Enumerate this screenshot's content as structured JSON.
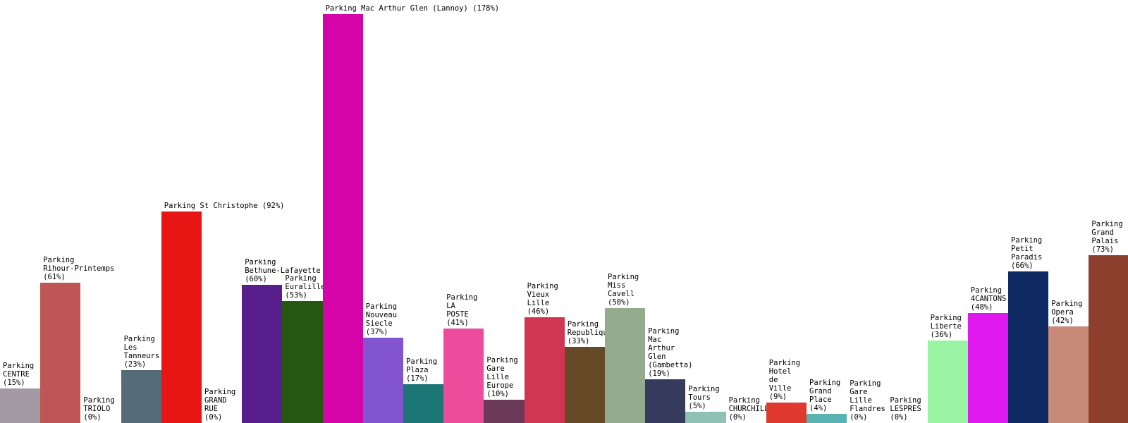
{
  "chart_data": {
    "type": "bar",
    "ylim": [
      0,
      178
    ],
    "grid": false,
    "legend": "none",
    "bars": [
      {
        "name": "Parking CENTRE",
        "label_lines": [
          "Parking",
          "CENTRE",
          "(15%)"
        ],
        "value": 15,
        "color": "#a39aa4"
      },
      {
        "name": "Parking Rihour-Printemps",
        "label_lines": [
          "Parking",
          "Rihour-Printemps",
          "(61%)"
        ],
        "value": 61,
        "color": "#bf5656"
      },
      {
        "name": "Parking TRIOLO",
        "label_lines": [
          "Parking",
          "TRIOLO",
          "(0%)"
        ],
        "value": 0,
        "color": "#cccccc"
      },
      {
        "name": "Parking Les Tanneurs",
        "label_lines": [
          "Parking",
          "Les",
          "Tanneurs",
          "(23%)"
        ],
        "value": 23,
        "color": "#566b78"
      },
      {
        "name": "Parking St Christophe",
        "label_lines": [
          "Parking St Christophe (92%)"
        ],
        "value": 92,
        "color": "#e81515"
      },
      {
        "name": "Parking GRAND RUE",
        "label_lines": [
          "Parking",
          "GRAND",
          "RUE",
          "(0%)"
        ],
        "value": 0,
        "color": "#cccccc"
      },
      {
        "name": "Parking Bethune-Lafayette",
        "label_lines": [
          "Parking",
          "Bethune-Lafayette",
          "(60%)"
        ],
        "value": 60,
        "color": "#571e8c"
      },
      {
        "name": "Parking Euralille",
        "label_lines": [
          "Parking",
          "Euralille",
          "(53%)"
        ],
        "value": 53,
        "color": "#265712"
      },
      {
        "name": "Parking Mac Arthur Glen (Lannoy)",
        "label_lines": [
          "Parking Mac Arthur Glen (Lannoy) (178%)"
        ],
        "value": 178,
        "color": "#d404a8"
      },
      {
        "name": "Parking Nouveau Siecle",
        "label_lines": [
          "Parking",
          "Nouveau",
          "Siecle",
          "(37%)"
        ],
        "value": 37,
        "color": "#8354cf"
      },
      {
        "name": "Parking Plaza",
        "label_lines": [
          "Parking",
          "Plaza",
          "(17%)"
        ],
        "value": 17,
        "color": "#1c7676"
      },
      {
        "name": "Parking LA POSTE",
        "label_lines": [
          "Parking",
          "LA",
          "POSTE",
          "(41%)"
        ],
        "value": 41,
        "color": "#ec4c9b"
      },
      {
        "name": "Parking Gare Lille Europe",
        "label_lines": [
          "Parking",
          "Gare",
          "Lille",
          "Europe",
          "(10%)"
        ],
        "value": 10,
        "color": "#6b3a59"
      },
      {
        "name": "Parking Vieux Lille",
        "label_lines": [
          "Parking",
          "Vieux",
          "Lille",
          "(46%)"
        ],
        "value": 46,
        "color": "#d13551"
      },
      {
        "name": "Parking Republique",
        "label_lines": [
          "Parking",
          "Republique",
          "(33%)"
        ],
        "value": 33,
        "color": "#664a28"
      },
      {
        "name": "Parking Miss Cavell",
        "label_lines": [
          "Parking",
          "Miss",
          "Cavell",
          "(50%)"
        ],
        "value": 50,
        "color": "#94ab8e"
      },
      {
        "name": "Parking Mac Arthur Glen (Gambetta)",
        "label_lines": [
          "Parking",
          "Mac",
          "Arthur",
          "Glen",
          "(Gambetta)",
          "(19%)"
        ],
        "value": 19,
        "color": "#363b5e"
      },
      {
        "name": "Parking Tours",
        "label_lines": [
          "Parking",
          "Tours",
          "(5%)"
        ],
        "value": 5,
        "color": "#8fc2b4"
      },
      {
        "name": "Parking CHURCHILL",
        "label_lines": [
          "Parking",
          "CHURCHILL",
          "(0%)"
        ],
        "value": 0,
        "color": "#cccccc"
      },
      {
        "name": "Parking Hotel de Ville",
        "label_lines": [
          "Parking",
          "Hotel",
          "de",
          "Ville",
          "(9%)"
        ],
        "value": 9,
        "color": "#e03a2f"
      },
      {
        "name": "Parking Grand Place",
        "label_lines": [
          "Parking",
          "Grand",
          "Place",
          "(4%)"
        ],
        "value": 4,
        "color": "#59b3b3"
      },
      {
        "name": "Parking Gare Lille Flandres",
        "label_lines": [
          "Parking",
          "Gare",
          "Lille",
          "Flandres",
          "(0%)"
        ],
        "value": 0,
        "color": "#cccccc"
      },
      {
        "name": "Parking LESPRES",
        "label_lines": [
          "Parking",
          "LESPRES",
          "(0%)"
        ],
        "value": 0,
        "color": "#cccccc"
      },
      {
        "name": "Parking Liberte",
        "label_lines": [
          "Parking",
          "Liberte",
          "(36%)"
        ],
        "value": 36,
        "color": "#99f5a3"
      },
      {
        "name": "Parking 4CANTONS",
        "label_lines": [
          "Parking",
          "4CANTONS",
          "(48%)"
        ],
        "value": 48,
        "color": "#df19ee"
      },
      {
        "name": "Parking Petit Paradis",
        "label_lines": [
          "Parking",
          "Petit",
          "Paradis",
          "(66%)"
        ],
        "value": 66,
        "color": "#0f2a63"
      },
      {
        "name": "Parking Opera",
        "label_lines": [
          "Parking",
          "Opera",
          "(42%)"
        ],
        "value": 42,
        "color": "#c78a77"
      },
      {
        "name": "Parking Grand Palais",
        "label_lines": [
          "Parking",
          "Grand",
          "Palais",
          "(73%)"
        ],
        "value": 73,
        "color": "#8d3f2e"
      }
    ]
  }
}
